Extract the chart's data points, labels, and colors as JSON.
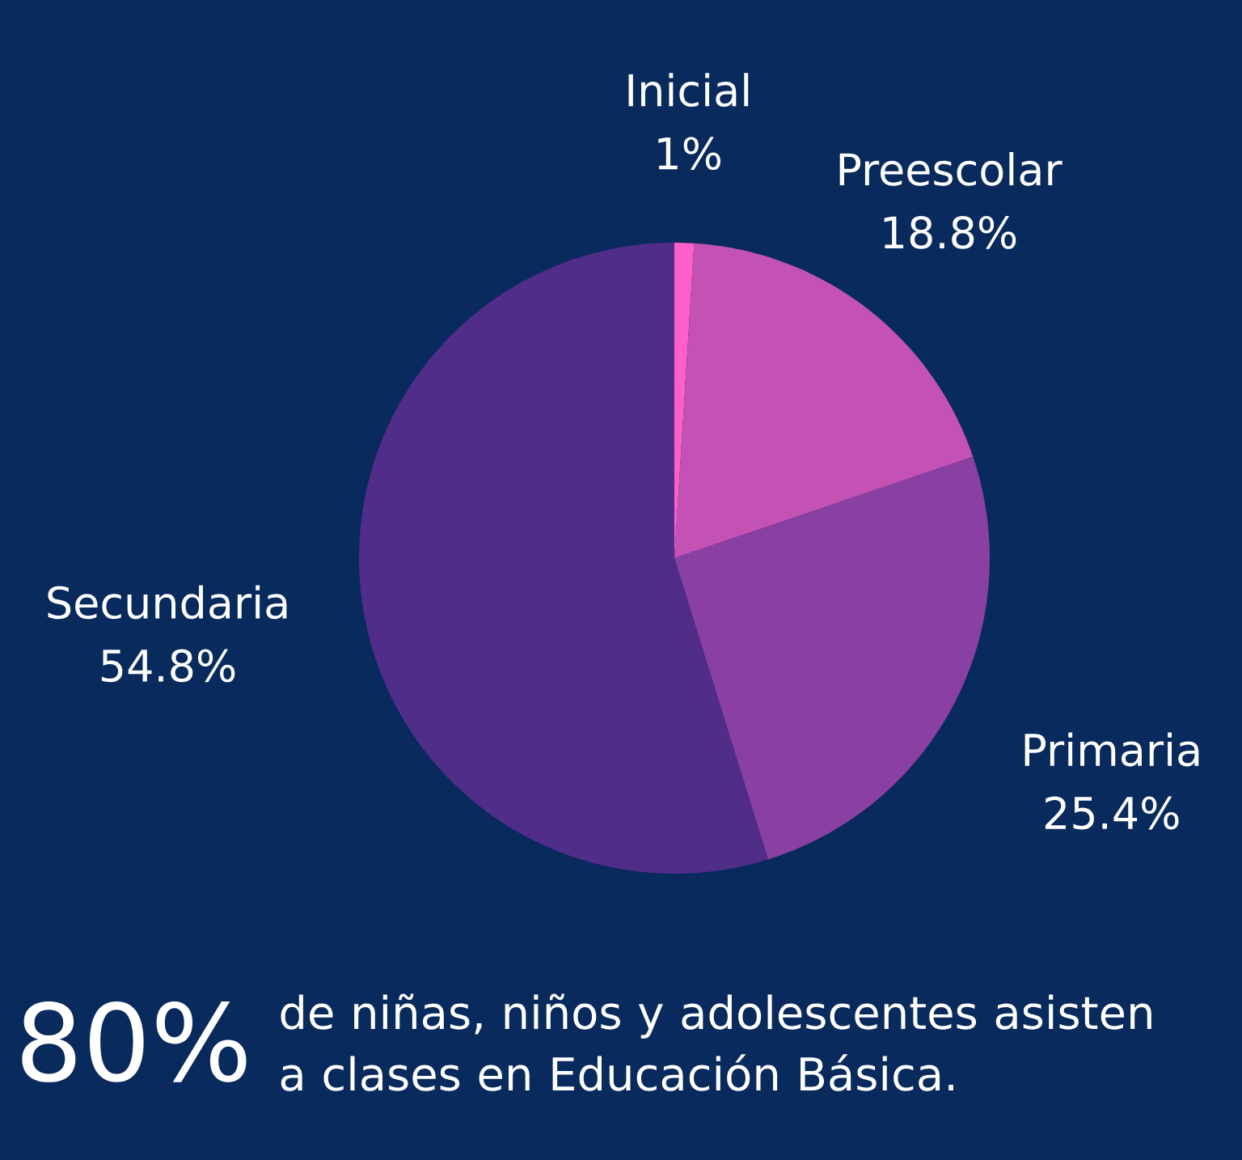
{
  "chart_data": {
    "type": "pie",
    "categories": [
      "Inicial",
      "Preescolar",
      "Primaria",
      "Secundaria"
    ],
    "values": [
      1,
      18.8,
      25.4,
      54.8
    ],
    "colors": [
      "#ff5fc8",
      "#c452b4",
      "#8a40a2",
      "#512d8a"
    ],
    "value_labels": [
      "1%",
      "18.8%",
      "25.4%",
      "54.8%"
    ],
    "annotations": [
      "80%",
      "de niñas, niños y adolescentes asisten a clases en Educación Básica."
    ]
  }
}
